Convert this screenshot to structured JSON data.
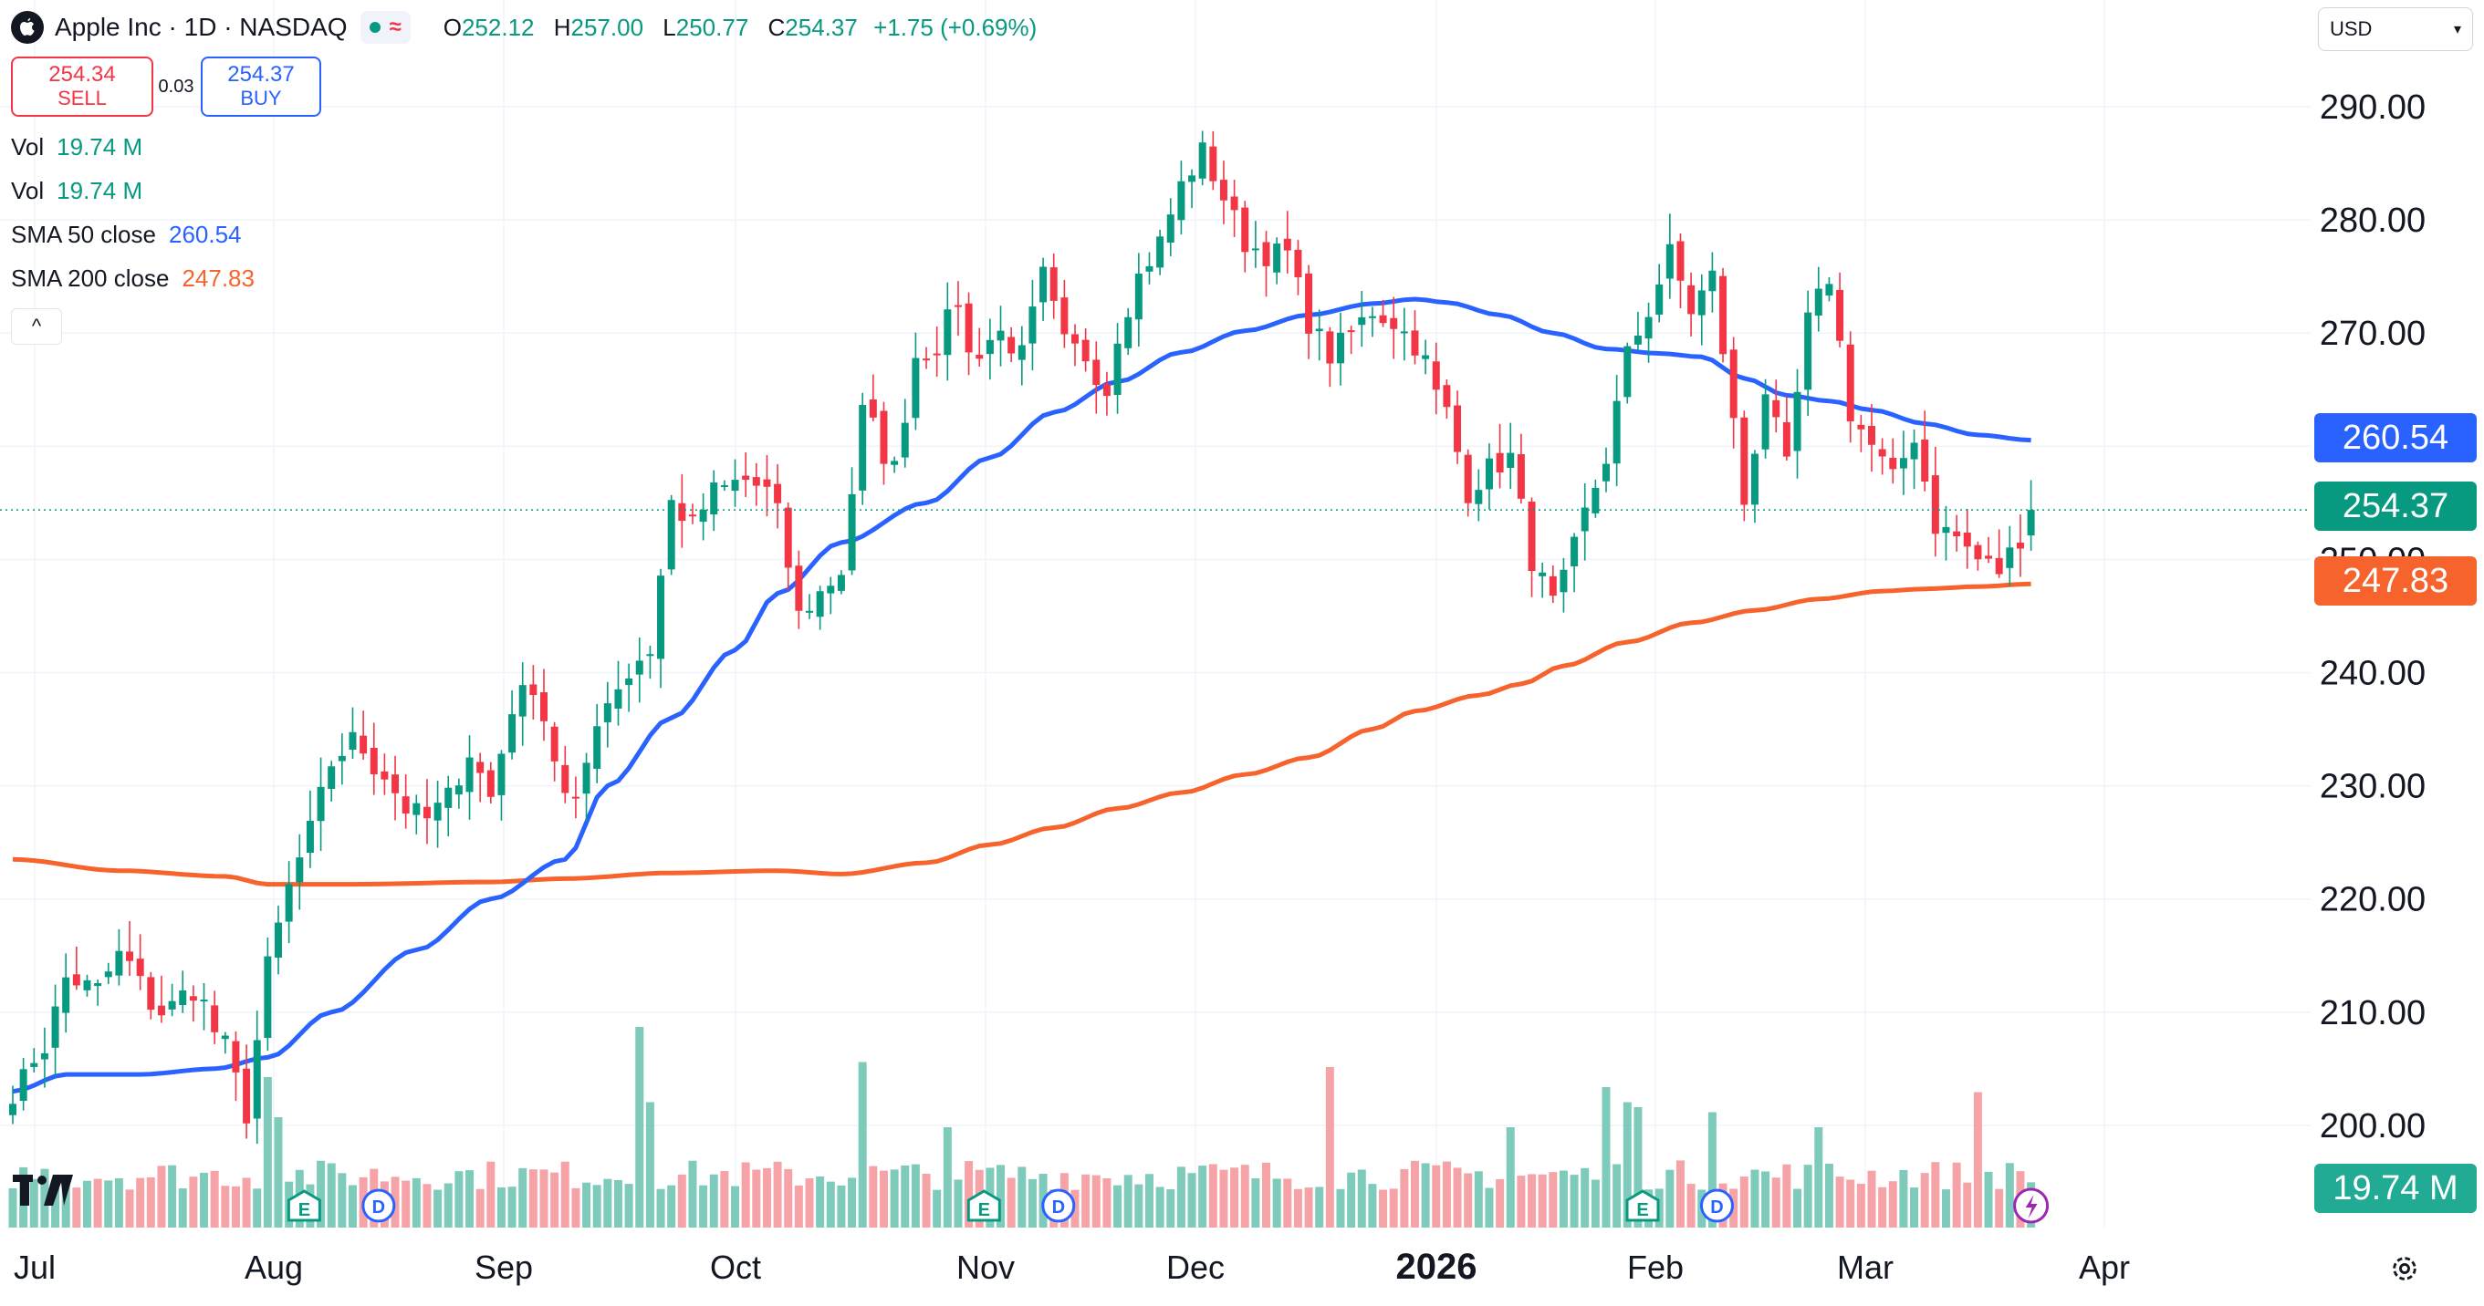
{
  "header": {
    "title": "Apple Inc · 1D · NASDAQ",
    "ohlc": {
      "o_label": "O",
      "o_value": "252.12",
      "h_label": "H",
      "h_value": "257.00",
      "l_label": "L",
      "l_value": "250.77",
      "c_label": "C",
      "c_value": "254.37",
      "change": "+1.75 (+0.69%)"
    },
    "colors": {
      "up": "#089981",
      "down": "#f23645"
    }
  },
  "trade": {
    "sell_price": "254.34",
    "sell_label": "SELL",
    "spread": "0.03",
    "buy_price": "254.37",
    "buy_label": "BUY"
  },
  "indicators": [
    {
      "label": "Vol",
      "value": "19.74 M",
      "color": "#089981"
    },
    {
      "label": "Vol",
      "value": "19.74 M",
      "color": "#089981"
    },
    {
      "label": "SMA 50 close",
      "value": "260.54",
      "color": "#2962ff"
    },
    {
      "label": "SMA 200 close",
      "value": "247.83",
      "color": "#f7632c"
    }
  ],
  "currency": {
    "value": "USD"
  },
  "badges": {
    "sma50": {
      "value": "260.54",
      "color": "#2962ff"
    },
    "close": {
      "value": "254.37",
      "color": "#089981"
    },
    "sma200": {
      "value": "247.83",
      "color": "#f7632c"
    },
    "volume": {
      "value": "19.74 M",
      "color": "#22ab94"
    }
  },
  "chart_data": {
    "type": "candlestick",
    "title": "Apple Inc · 1D · NASDAQ",
    "y_axis": {
      "min": 193,
      "max": 295,
      "ticks": [
        200,
        210,
        220,
        230,
        240,
        250,
        260,
        270,
        280,
        290
      ],
      "tick_labels": [
        "200.00",
        "210.00",
        "220.00",
        "230.00",
        "240.00",
        "250.00",
        "260.00",
        "270.00",
        "280.00",
        "290.00"
      ]
    },
    "x_axis": {
      "labels": [
        "Jul",
        "Aug",
        "Sep",
        "Oct",
        "Nov",
        "Dec",
        "2026",
        "Feb",
        "Mar",
        "Apr"
      ],
      "bold_labels": [
        "2026"
      ]
    },
    "anchors": [
      [
        0,
        203
      ],
      [
        3,
        207
      ],
      [
        5,
        213
      ],
      [
        8,
        212
      ],
      [
        10,
        215
      ],
      [
        14,
        210
      ],
      [
        17,
        212
      ],
      [
        20,
        207
      ],
      [
        22,
        201
      ],
      [
        24,
        214
      ],
      [
        26,
        221
      ],
      [
        28,
        226
      ],
      [
        30,
        232
      ],
      [
        32,
        234
      ],
      [
        35,
        231
      ],
      [
        37,
        228
      ],
      [
        39,
        227
      ],
      [
        41,
        229
      ],
      [
        43,
        233
      ],
      [
        45,
        229
      ],
      [
        47,
        237
      ],
      [
        49,
        239
      ],
      [
        50,
        236
      ],
      [
        52,
        229
      ],
      [
        53,
        228
      ],
      [
        55,
        236
      ],
      [
        57,
        239
      ],
      [
        60,
        242
      ],
      [
        62,
        255
      ],
      [
        64,
        253
      ],
      [
        66,
        256
      ],
      [
        69,
        257
      ],
      [
        71,
        256
      ],
      [
        72,
        254
      ],
      [
        74,
        245
      ],
      [
        76,
        247
      ],
      [
        78,
        249
      ],
      [
        79,
        256
      ],
      [
        80,
        263
      ],
      [
        83,
        258
      ],
      [
        85,
        268
      ],
      [
        87,
        269
      ],
      [
        89,
        273
      ],
      [
        90,
        268
      ],
      [
        93,
        270
      ],
      [
        95,
        268
      ],
      [
        97,
        275
      ],
      [
        99,
        269
      ],
      [
        101,
        268
      ],
      [
        103,
        265
      ],
      [
        104,
        270
      ],
      [
        106,
        275
      ],
      [
        108,
        278
      ],
      [
        110,
        283
      ],
      [
        112,
        286
      ],
      [
        114,
        282
      ],
      [
        116,
        278
      ],
      [
        118,
        277
      ],
      [
        120,
        277
      ],
      [
        122,
        271
      ],
      [
        124,
        268
      ],
      [
        126,
        270
      ],
      [
        128,
        272
      ],
      [
        130,
        271
      ],
      [
        132,
        269
      ],
      [
        135,
        263
      ],
      [
        137,
        256
      ],
      [
        139,
        258
      ],
      [
        141,
        259
      ],
      [
        143,
        250
      ],
      [
        145,
        246
      ],
      [
        146,
        248
      ],
      [
        148,
        254
      ],
      [
        150,
        259
      ],
      [
        152,
        268
      ],
      [
        154,
        272
      ],
      [
        156,
        277
      ],
      [
        158,
        272
      ],
      [
        160,
        275
      ],
      [
        162,
        262
      ],
      [
        163,
        255
      ],
      [
        165,
        265
      ],
      [
        167,
        258
      ],
      [
        169,
        271
      ],
      [
        171,
        275
      ],
      [
        173,
        263
      ],
      [
        175,
        260
      ],
      [
        177,
        257
      ],
      [
        179,
        261
      ],
      [
        181,
        253
      ],
      [
        183,
        252
      ],
      [
        185,
        250
      ],
      [
        187,
        249
      ],
      [
        189,
        252
      ],
      [
        190,
        254
      ]
    ],
    "sma50": [
      [
        0,
        203
      ],
      [
        5,
        204.5
      ],
      [
        12,
        204.5
      ],
      [
        19,
        205
      ],
      [
        24,
        206
      ],
      [
        30,
        210
      ],
      [
        38,
        215.5
      ],
      [
        45,
        220
      ],
      [
        52,
        223.5
      ],
      [
        56,
        230
      ],
      [
        62,
        236
      ],
      [
        68,
        242
      ],
      [
        72,
        247
      ],
      [
        78,
        251.5
      ],
      [
        86,
        255
      ],
      [
        92,
        259
      ],
      [
        98,
        263
      ],
      [
        104,
        265.7
      ],
      [
        110,
        268.3
      ],
      [
        116,
        270.2
      ],
      [
        122,
        271.6
      ],
      [
        128,
        272.6
      ],
      [
        132,
        273
      ],
      [
        135,
        272.7
      ],
      [
        140,
        271.6
      ],
      [
        145,
        270
      ],
      [
        150,
        268.6
      ],
      [
        155,
        268.2
      ],
      [
        159,
        267.9
      ],
      [
        163,
        266
      ],
      [
        167,
        264.5
      ],
      [
        171,
        264
      ],
      [
        175,
        263.2
      ],
      [
        180,
        262
      ],
      [
        185,
        261
      ],
      [
        190,
        260.54
      ]
    ],
    "sma200": [
      [
        0,
        223.5
      ],
      [
        10,
        222.5
      ],
      [
        20,
        222
      ],
      [
        24,
        221.3
      ],
      [
        32,
        221.3
      ],
      [
        45,
        221.5
      ],
      [
        52,
        221.8
      ],
      [
        62,
        222.3
      ],
      [
        72,
        222.5
      ],
      [
        78,
        222.2
      ],
      [
        86,
        223.2
      ],
      [
        92,
        224.8
      ],
      [
        98,
        226.3
      ],
      [
        104,
        228
      ],
      [
        110,
        229.4
      ],
      [
        116,
        231
      ],
      [
        122,
        232.5
      ],
      [
        128,
        235
      ],
      [
        132,
        236.6
      ],
      [
        138,
        238
      ],
      [
        142,
        239
      ],
      [
        146,
        240.6
      ],
      [
        152,
        242.7
      ],
      [
        158,
        244.4
      ],
      [
        164,
        245.5
      ],
      [
        170,
        246.5
      ],
      [
        176,
        247.2
      ],
      [
        180,
        247.4
      ],
      [
        185,
        247.6
      ],
      [
        190,
        247.83
      ]
    ],
    "volume_spikes": {
      "24": 3.0,
      "25": 2.2,
      "59": 4.0,
      "60": 2.5,
      "80": 3.3,
      "88": 2.0,
      "124": 3.2,
      "141": 2.0,
      "150": 2.8,
      "152": 2.5,
      "153": 2.4,
      "160": 2.3,
      "170": 2.0,
      "185": 2.7
    },
    "events": [
      {
        "type": "E",
        "bar": 24
      },
      {
        "type": "D",
        "bar": 31
      },
      {
        "type": "E",
        "bar": 88
      },
      {
        "type": "D",
        "bar": 95
      },
      {
        "type": "E",
        "bar": 150
      },
      {
        "type": "D",
        "bar": 157
      }
    ],
    "last": {
      "open": "252.12",
      "high": "257.00",
      "low": "250.77",
      "close": "254.37",
      "volume": "19.74 M"
    }
  }
}
